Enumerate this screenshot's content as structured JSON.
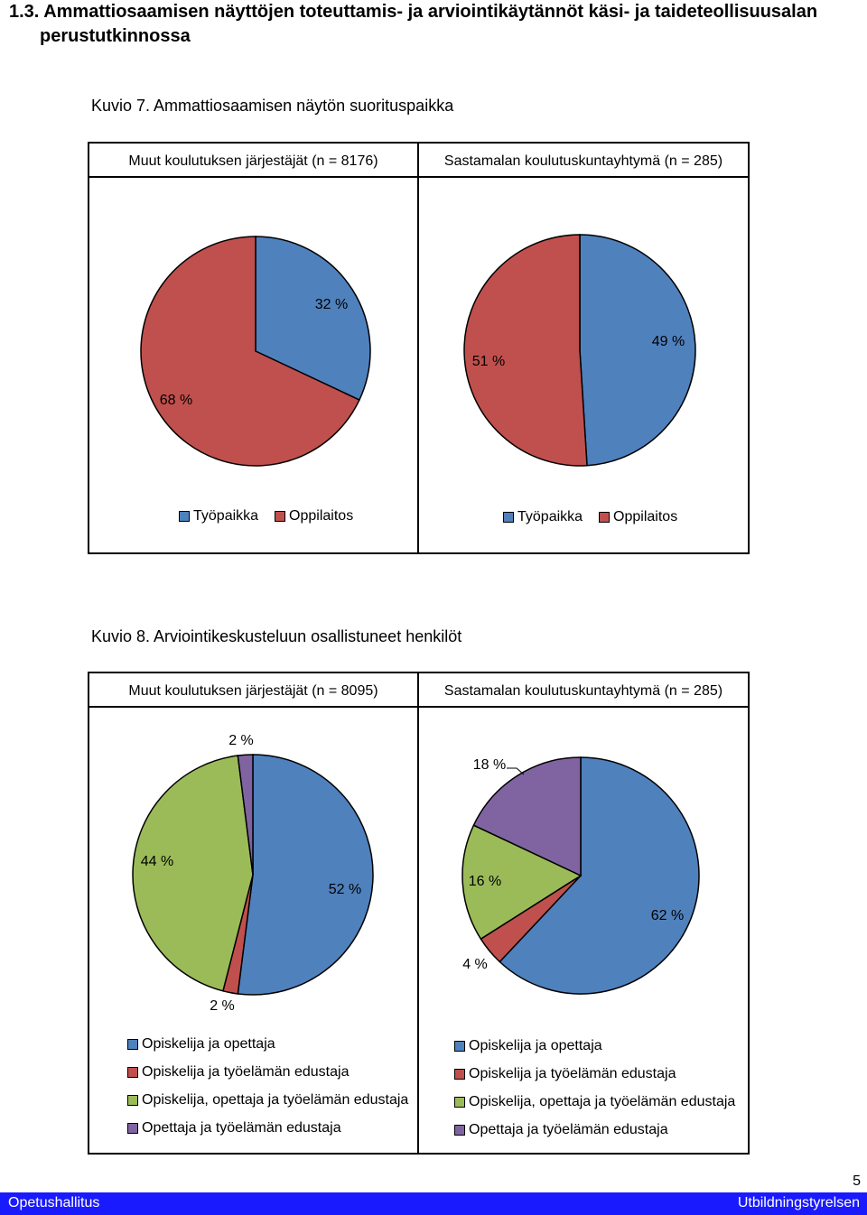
{
  "section": {
    "number": "1.3.",
    "title_line1": "Ammattiosaamisen näyttöjen toteuttamis- ja arviointikäytännöt käsi- ja taideteollisuusalan",
    "title_line2": "perustutkinnossa"
  },
  "figure7": {
    "caption": "Kuvio 7. Ammattiosaamisen näytön suorituspaikka",
    "left_header": "Muut koulutuksen järjestäjät (n = 8176)",
    "right_header": "Sastamalan koulutuskuntayhtymä (n = 285)",
    "legend": [
      "Työpaikka",
      "Oppilaitos"
    ],
    "colors": [
      "#4f81bd",
      "#c0504d"
    ]
  },
  "figure8": {
    "caption": "Kuvio 8. Arviointikeskusteluun osallistuneet henkilöt",
    "left_header": "Muut koulutuksen järjestäjät (n = 8095)",
    "right_header": "Sastamalan koulutuskuntayhtymä (n = 285)",
    "legend": [
      "Opiskelija ja opettaja",
      "Opiskelija ja työelämän edustaja",
      "Opiskelija, opettaja ja työelämän edustaja",
      "Opettaja ja työelämän edustaja"
    ],
    "colors": [
      "#4f81bd",
      "#c0504d",
      "#9bbb59",
      "#8064a2"
    ]
  },
  "chart_data": [
    {
      "type": "pie",
      "title": "Muut koulutuksen järjestäjät (n = 8176)",
      "categories": [
        "Työpaikka",
        "Oppilaitos"
      ],
      "values": [
        32,
        68
      ],
      "labels": [
        "32 %",
        "68 %"
      ],
      "legend": "bottom"
    },
    {
      "type": "pie",
      "title": "Sastamalan koulutuskuntayhtymä (n = 285)",
      "categories": [
        "Työpaikka",
        "Oppilaitos"
      ],
      "values": [
        49,
        51
      ],
      "labels": [
        "49 %",
        "51 %"
      ],
      "legend": "bottom"
    },
    {
      "type": "pie",
      "title": "Muut koulutuksen järjestäjät (n = 8095)",
      "categories": [
        "Opiskelija ja opettaja",
        "Opiskelija ja työelämän edustaja",
        "Opiskelija, opettaja ja työelämän edustaja",
        "Opettaja ja työelämän edustaja"
      ],
      "values": [
        52,
        2,
        44,
        2
      ],
      "labels": [
        "52 %",
        "2 %",
        "44 %",
        "2 %"
      ],
      "legend": "bottom"
    },
    {
      "type": "pie",
      "title": "Sastamalan koulutuskuntayhtymä (n = 285)",
      "categories": [
        "Opiskelija ja opettaja",
        "Opiskelija ja työelämän edustaja",
        "Opiskelija, opettaja ja työelämän edustaja",
        "Opettaja ja työelämän edustaja"
      ],
      "values": [
        62,
        4,
        16,
        18
      ],
      "labels": [
        "62 %",
        "4 %",
        "16 %",
        "18 %"
      ],
      "legend": "bottom"
    }
  ],
  "footer": {
    "left": "Opetushallitus",
    "right": "Utbildningstyrelsen",
    "page_number": "5"
  }
}
